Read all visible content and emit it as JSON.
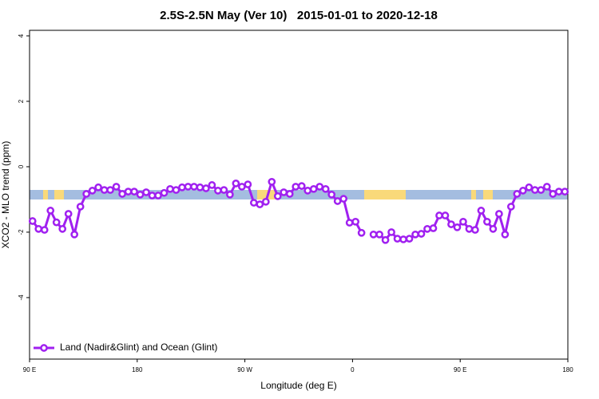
{
  "chart_data": {
    "type": "line",
    "title": "2.5S-2.5N May (Ver 10)   2015-01-01 to 2020-12-18",
    "x_label": "Longitude (deg E)",
    "y_label": "XCO2 - MLO trend (ppm)",
    "x": [
      92.5,
      97.5,
      102.5,
      107.5,
      112.5,
      117.5,
      122.5,
      127.5,
      132.5,
      137.5,
      142.5,
      147.5,
      152.5,
      157.5,
      162.5,
      167.5,
      172.5,
      177.5,
      182.5,
      187.5,
      192.5,
      197.5,
      202.5,
      207.5,
      212.5,
      217.5,
      222.5,
      227.5,
      232.5,
      237.5,
      242.5,
      247.5,
      252.5,
      257.5,
      262.5,
      267.5,
      272.5,
      277.5,
      282.5,
      287.5,
      292.5,
      297.5,
      302.5,
      307.5,
      312.5,
      317.5,
      322.5,
      327.5,
      332.5,
      337.5,
      342.5,
      347.5,
      352.5,
      357.5,
      362.5,
      367.5,
      372.5,
      377.5,
      382.5,
      387.5,
      392.5,
      397.5,
      402.5,
      407.5,
      412.5,
      417.5,
      422.5,
      427.5,
      432.5,
      437.5,
      442.5,
      447.5,
      452.5,
      457.5,
      462.5,
      467.5,
      472.5,
      477.5,
      482.5,
      487.5,
      492.5,
      497.5,
      502.5,
      507.5,
      512.5,
      517.5,
      522.5,
      527.5,
      532.5,
      537.5
    ],
    "series": [
      {
        "name": "Land (Nadir&Glint) and Ocean (Glint)",
        "color": "#a020f0",
        "values": [
          -1.66,
          -1.9,
          -1.93,
          -1.34,
          -1.7,
          -1.9,
          -1.44,
          -2.07,
          -1.22,
          -0.83,
          -0.73,
          -0.63,
          -0.71,
          -0.71,
          -0.61,
          -0.83,
          -0.76,
          -0.76,
          -0.85,
          -0.78,
          -0.88,
          -0.88,
          -0.8,
          -0.68,
          -0.71,
          -0.63,
          -0.61,
          -0.61,
          -0.63,
          -0.66,
          -0.56,
          -0.73,
          -0.71,
          -0.85,
          -0.51,
          -0.61,
          -0.54,
          -1.1,
          -1.15,
          -1.07,
          -0.46,
          -0.9,
          -0.78,
          -0.83,
          -0.61,
          -0.59,
          -0.73,
          -0.68,
          -0.61,
          -0.68,
          -0.85,
          -1.05,
          -0.98,
          -1.71,
          -1.68,
          -2.02,
          null,
          -2.07,
          -2.07,
          -2.24,
          -2.0,
          -2.2,
          -2.22,
          -2.2,
          -2.07,
          -2.05,
          -1.9,
          -1.88,
          -1.49,
          -1.49,
          -1.76,
          -1.85,
          -1.68,
          -1.9,
          -1.93,
          -1.34,
          -1.68,
          -1.9,
          -1.44,
          -2.07,
          -1.22,
          -0.83,
          -0.73,
          -0.63,
          -0.71,
          -0.71,
          -0.61,
          -0.83,
          -0.76,
          -0.76
        ]
      }
    ],
    "xlim": [
      90,
      540
    ],
    "xticks": [
      {
        "value": 90,
        "label": "90 E"
      },
      180,
      {
        "value": 270,
        "label": "90 W"
      },
      {
        "value": 360,
        "label": "0"
      },
      {
        "value": 450,
        "label": "90 E"
      },
      {
        "value": 540,
        "label": "180"
      }
    ],
    "ylim": [
      -5.88,
      4.17
    ],
    "yticks": [
      4,
      2,
      0,
      -2,
      -4
    ],
    "legend": "bottom-left"
  }
}
